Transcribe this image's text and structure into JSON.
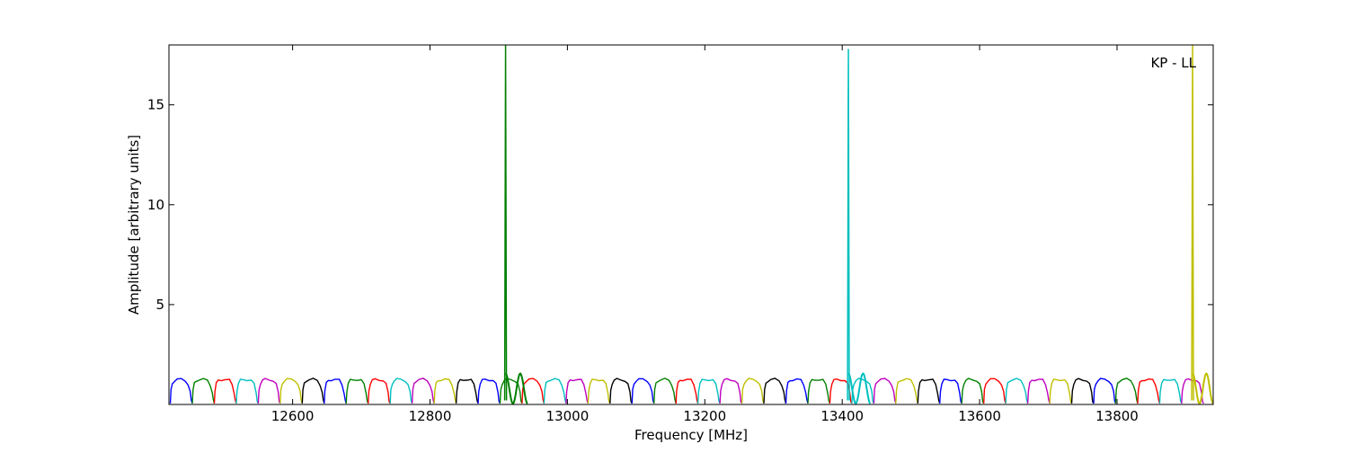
{
  "chart_data": {
    "type": "line",
    "title": "",
    "annotation": "KP - LL",
    "xlabel": "Frequency [MHz]",
    "ylabel": "Amplitude [arbitrary units]",
    "xlim": [
      12420,
      13940
    ],
    "ylim": [
      0.0,
      18.0
    ],
    "xticks": [
      12600,
      12800,
      13000,
      13200,
      13400,
      13600,
      13800
    ],
    "yticks": [
      5,
      10,
      15
    ],
    "grid": false,
    "legend": "none",
    "channel_width_mhz": 32,
    "channel_start_mhz": 12422,
    "channel_count": 47,
    "channel_colors": [
      "#0000ff",
      "#008000",
      "#ff0000",
      "#00bfbf",
      "#bf00bf",
      "#bfbf00",
      "#000000"
    ],
    "bandpass_profile": {
      "x_offsets_mhz": [
        0,
        1,
        3,
        6,
        10,
        16,
        22,
        26,
        29,
        30.5,
        32
      ],
      "amplitude": [
        0.05,
        0.7,
        1.05,
        1.2,
        1.25,
        1.25,
        1.2,
        1.0,
        0.6,
        0.2,
        0.05
      ]
    },
    "spikes": [
      {
        "x": 12910,
        "y": 18.0,
        "color": "#008000"
      },
      {
        "x": 13409,
        "y": 17.8,
        "color": "#00bfbf"
      },
      {
        "x": 13910,
        "y": 18.0,
        "color": "#bfbf00"
      }
    ],
    "ringing": [
      {
        "x_start": 12910,
        "x_end": 12942,
        "color": "#008000"
      },
      {
        "x_start": 13409,
        "x_end": 13441,
        "color": "#00bfbf"
      },
      {
        "x_start": 13910,
        "x_end": 13940,
        "color": "#bfbf00"
      }
    ]
  }
}
